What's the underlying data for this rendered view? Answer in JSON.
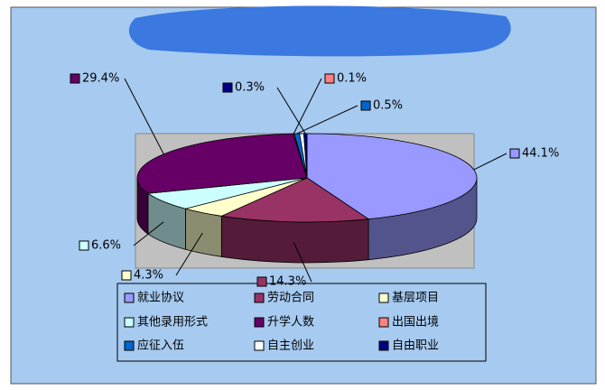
{
  "chart_data": {
    "type": "pie",
    "style": "3d",
    "categories": [
      "就业协议",
      "劳动合同",
      "基层项目",
      "其他录用形式",
      "升学人数",
      "出国出境",
      "应征入伍",
      "自主创业",
      "自由职业"
    ],
    "values": [
      44.1,
      14.3,
      4.3,
      6.6,
      29.4,
      0.1,
      0.5,
      0.4,
      0.3
    ],
    "value_labels": [
      "44.1%",
      "14.3%",
      "4.3%",
      "6.6%",
      "29.4%",
      "0.1%",
      "0.5%",
      null,
      "0.3%"
    ],
    "colors": [
      "#9999ff",
      "#993366",
      "#ffffcc",
      "#ccffff",
      "#660066",
      "#ff8080",
      "#0066cc",
      "#ffffff",
      "#000080"
    ],
    "legend": "bottom"
  }
}
